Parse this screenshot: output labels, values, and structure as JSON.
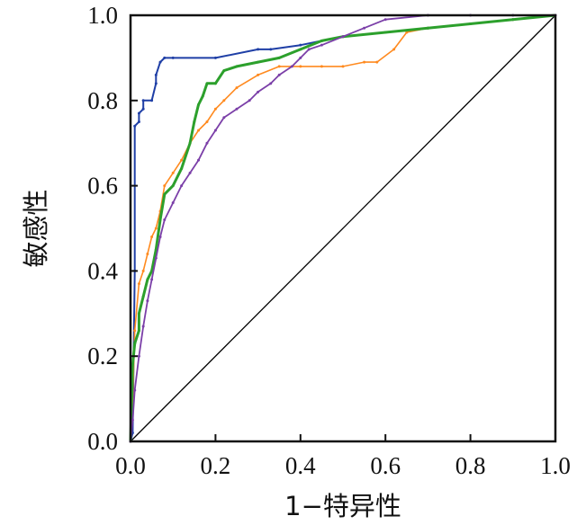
{
  "chart_data": {
    "type": "line",
    "title": "",
    "xlabel": "1−特异性",
    "ylabel": "敏感性",
    "xlim": [
      0,
      1.0
    ],
    "ylim": [
      0,
      1.0
    ],
    "grid": false,
    "legend": "none",
    "x_ticks": [
      "0.0",
      "0.2",
      "0.4",
      "0.6",
      "0.8",
      "1.0"
    ],
    "y_ticks": [
      "0.0",
      "0.2",
      "0.4",
      "0.6",
      "0.8",
      "1.0"
    ],
    "reference_line": {
      "x": [
        0,
        1
      ],
      "y": [
        0,
        1
      ],
      "color": "#000000"
    },
    "series": [
      {
        "color": "#1f3fa6",
        "x": [
          0,
          0.005,
          0.01,
          0.01,
          0.02,
          0.02,
          0.03,
          0.03,
          0.05,
          0.06,
          0.06,
          0.07,
          0.08,
          0.1,
          0.2,
          0.3,
          0.33,
          0.4,
          0.45,
          0.5,
          0.6,
          0.7,
          0.8,
          0.9,
          1.0
        ],
        "y": [
          0,
          0.02,
          0.4,
          0.74,
          0.75,
          0.77,
          0.78,
          0.8,
          0.8,
          0.84,
          0.86,
          0.89,
          0.9,
          0.9,
          0.9,
          0.92,
          0.92,
          0.93,
          0.94,
          0.95,
          0.96,
          0.97,
          0.98,
          0.99,
          1.0
        ]
      },
      {
        "color": "#ff8a1f",
        "x": [
          0,
          0.005,
          0.01,
          0.02,
          0.03,
          0.04,
          0.05,
          0.06,
          0.07,
          0.08,
          0.1,
          0.12,
          0.14,
          0.16,
          0.18,
          0.2,
          0.22,
          0.25,
          0.3,
          0.35,
          0.4,
          0.45,
          0.5,
          0.55,
          0.58,
          0.62,
          0.65,
          0.7,
          0.8,
          0.9,
          1.0
        ],
        "y": [
          0,
          0.1,
          0.26,
          0.37,
          0.4,
          0.44,
          0.48,
          0.5,
          0.54,
          0.6,
          0.63,
          0.66,
          0.7,
          0.73,
          0.75,
          0.78,
          0.8,
          0.83,
          0.86,
          0.88,
          0.88,
          0.88,
          0.88,
          0.89,
          0.89,
          0.92,
          0.96,
          0.97,
          0.98,
          0.99,
          1.0
        ]
      },
      {
        "color": "#2ca02c",
        "x": [
          0,
          0.005,
          0.01,
          0.01,
          0.02,
          0.02,
          0.03,
          0.04,
          0.05,
          0.06,
          0.07,
          0.08,
          0.1,
          0.12,
          0.14,
          0.15,
          0.16,
          0.17,
          0.18,
          0.2,
          0.22,
          0.25,
          0.3,
          0.35,
          0.4,
          0.45,
          0.5,
          0.6,
          0.7,
          0.8,
          0.9,
          1.0
        ],
        "y": [
          0,
          0.18,
          0.23,
          0.23,
          0.26,
          0.3,
          0.34,
          0.38,
          0.4,
          0.45,
          0.52,
          0.58,
          0.6,
          0.64,
          0.7,
          0.75,
          0.79,
          0.81,
          0.84,
          0.84,
          0.87,
          0.88,
          0.89,
          0.9,
          0.92,
          0.94,
          0.95,
          0.96,
          0.97,
          0.98,
          0.99,
          1.0
        ]
      },
      {
        "color": "#7b3fa8",
        "x": [
          0,
          0.005,
          0.01,
          0.02,
          0.03,
          0.04,
          0.05,
          0.06,
          0.07,
          0.08,
          0.1,
          0.12,
          0.14,
          0.16,
          0.18,
          0.2,
          0.22,
          0.25,
          0.28,
          0.3,
          0.33,
          0.35,
          0.38,
          0.4,
          0.42,
          0.45,
          0.5,
          0.55,
          0.6,
          0.7,
          0.8,
          0.9,
          1.0
        ],
        "y": [
          0,
          0.05,
          0.12,
          0.2,
          0.27,
          0.33,
          0.38,
          0.43,
          0.48,
          0.52,
          0.56,
          0.6,
          0.63,
          0.66,
          0.7,
          0.73,
          0.76,
          0.78,
          0.8,
          0.82,
          0.84,
          0.86,
          0.88,
          0.9,
          0.92,
          0.93,
          0.95,
          0.97,
          0.99,
          1.0,
          1.0,
          1.0,
          1.0
        ]
      }
    ]
  }
}
